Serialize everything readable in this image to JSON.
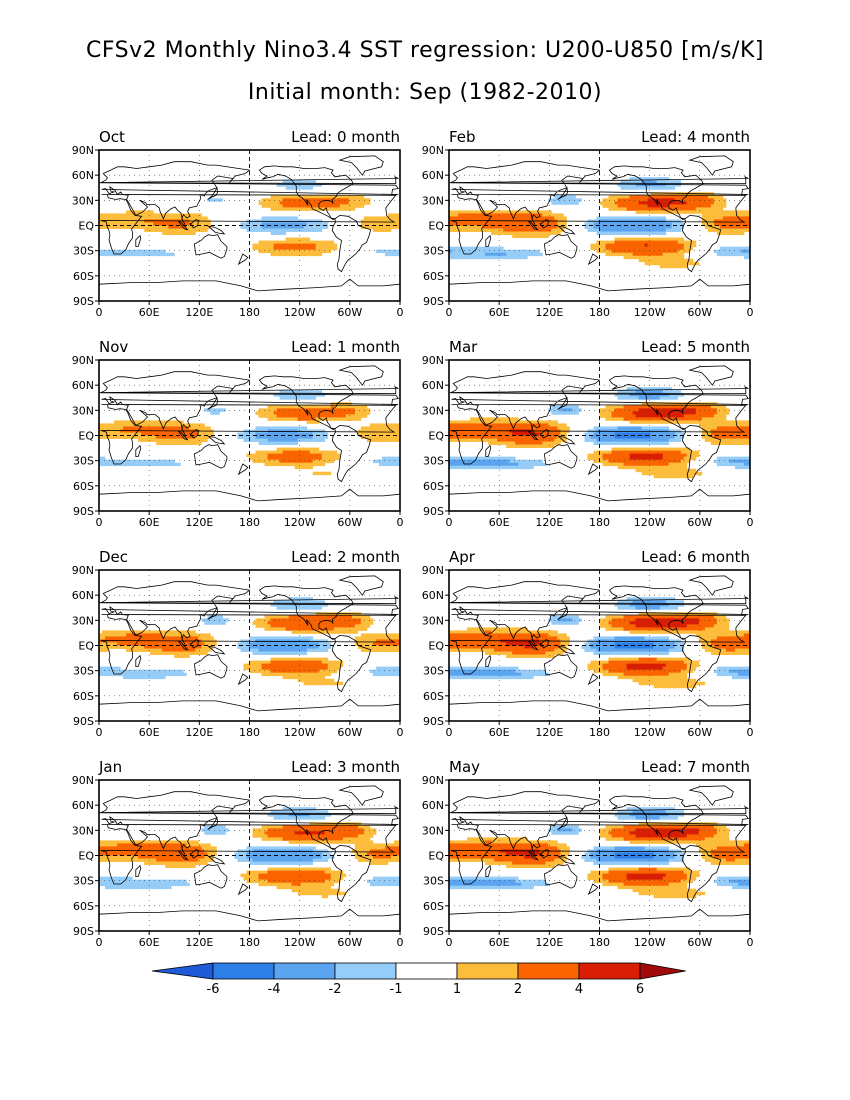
{
  "title_line1": "CFSv2 Monthly Nino3.4 SST regression: U200-U850 [m/s/K]",
  "title_line2": "Initial month: Sep (1982-2010)",
  "lead_prefix": "Lead:",
  "lat_labels": [
    "90N",
    "60N",
    "30N",
    "EQ",
    "30S",
    "60S",
    "90S"
  ],
  "lon_labels": [
    "0",
    "60E",
    "120E",
    "180",
    "120W",
    "60W",
    "0"
  ],
  "colorbar": {
    "labels": [
      "-6",
      "-4",
      "-2",
      "-1",
      "1",
      "2",
      "4",
      "6"
    ],
    "colors": [
      "#1f5ad8",
      "#2e7ee8",
      "#5aa4f0",
      "#96ccf8",
      "#ffffff",
      "#fcbc3c",
      "#fa6400",
      "#d81e04",
      "#a00a0a"
    ],
    "levels": [
      -6,
      -4,
      -2,
      -1,
      1,
      2,
      4,
      6
    ]
  },
  "panels": [
    {
      "month": "Oct",
      "lead": "Lead: 0 month",
      "amp": 0.7
    },
    {
      "month": "Feb",
      "lead": "Lead: 4 month",
      "amp": 1.15
    },
    {
      "month": "Nov",
      "lead": "Lead: 1 month",
      "amp": 0.8
    },
    {
      "month": "Mar",
      "lead": "Lead: 5 month",
      "amp": 1.3
    },
    {
      "month": "Dec",
      "lead": "Lead: 2 month",
      "amp": 0.95
    },
    {
      "month": "Apr",
      "lead": "Lead: 6 month",
      "amp": 1.35
    },
    {
      "month": "Jan",
      "lead": "Lead: 3 month",
      "amp": 1.05
    },
    {
      "month": "May",
      "lead": "Lead: 7 month",
      "amp": 1.35
    }
  ]
}
